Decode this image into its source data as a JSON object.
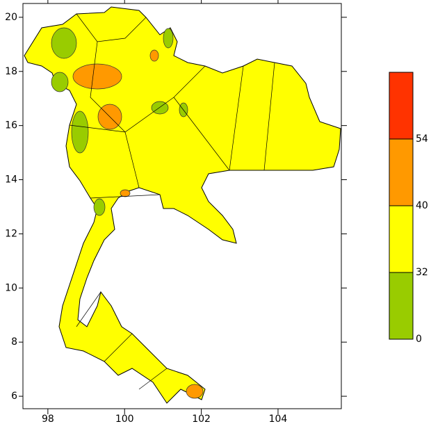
{
  "map": {
    "xlim": [
      97.35,
      105.65
    ],
    "ylim": [
      5.54,
      20.51
    ],
    "xticks": [
      98,
      100,
      102,
      104
    ],
    "yticks": [
      6,
      8,
      10,
      12,
      14,
      16,
      18,
      20
    ],
    "colorbar": {
      "levels": [
        0,
        32,
        40,
        54
      ],
      "colors": [
        "#99cc00",
        "#ffff00",
        "#ff9900",
        "#ff3300"
      ]
    }
  }
}
